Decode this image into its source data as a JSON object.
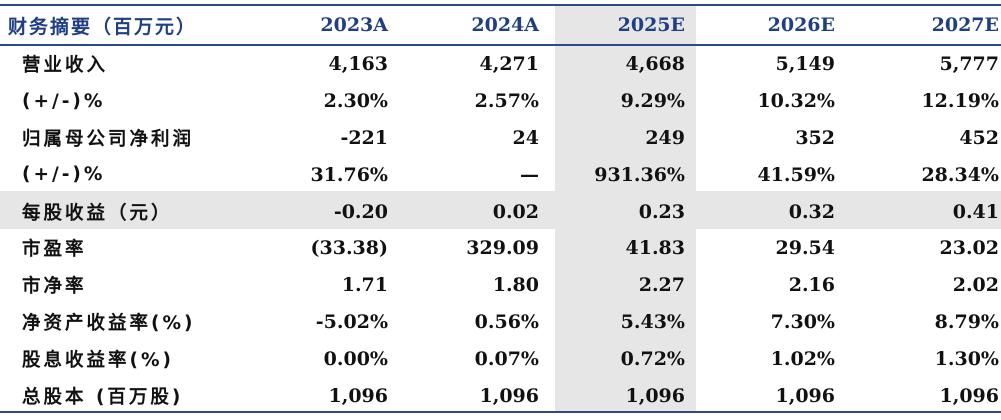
{
  "table": {
    "header": {
      "label": "财务摘要（百万元）",
      "years": [
        "2023A",
        "2024A",
        "2025E",
        "2026E",
        "2027E"
      ]
    },
    "rows": [
      {
        "label": "营业收入",
        "values": [
          "4,163",
          "4,271",
          "4,668",
          "5,149",
          "5,777"
        ]
      },
      {
        "label": "(+/-)%",
        "values": [
          "2.30%",
          "2.57%",
          "9.29%",
          "10.32%",
          "12.19%"
        ]
      },
      {
        "label": "归属母公司净利润",
        "values": [
          "-221",
          "24",
          "249",
          "352",
          "452"
        ]
      },
      {
        "label": "(+/-)%",
        "values": [
          "31.76%",
          "—",
          "931.36%",
          "41.59%",
          "28.34%"
        ]
      },
      {
        "label": "每股收益（元）",
        "values": [
          "-0.20",
          "0.02",
          "0.23",
          "0.32",
          "0.41"
        ]
      },
      {
        "label": "市盈率",
        "values": [
          "(33.38)",
          "329.09",
          "41.83",
          "29.54",
          "23.02"
        ]
      },
      {
        "label": "市净率",
        "values": [
          "1.71",
          "1.80",
          "2.27",
          "2.16",
          "2.02"
        ]
      },
      {
        "label": "净资产收益率(%)",
        "values": [
          "-5.02%",
          "0.56%",
          "5.43%",
          "7.30%",
          "8.79%"
        ]
      },
      {
        "label": "股息收益率(%)",
        "values": [
          "0.00%",
          "0.07%",
          "0.72%",
          "1.02%",
          "1.30%"
        ]
      },
      {
        "label": "总股本 (百万股)",
        "values": [
          "1,096",
          "1,096",
          "1,096",
          "1,096",
          "1,096"
        ]
      }
    ]
  },
  "colors": {
    "header_text": "#1f3e85",
    "rule": "#2b4a8b",
    "highlight": "#e6e6e6"
  }
}
